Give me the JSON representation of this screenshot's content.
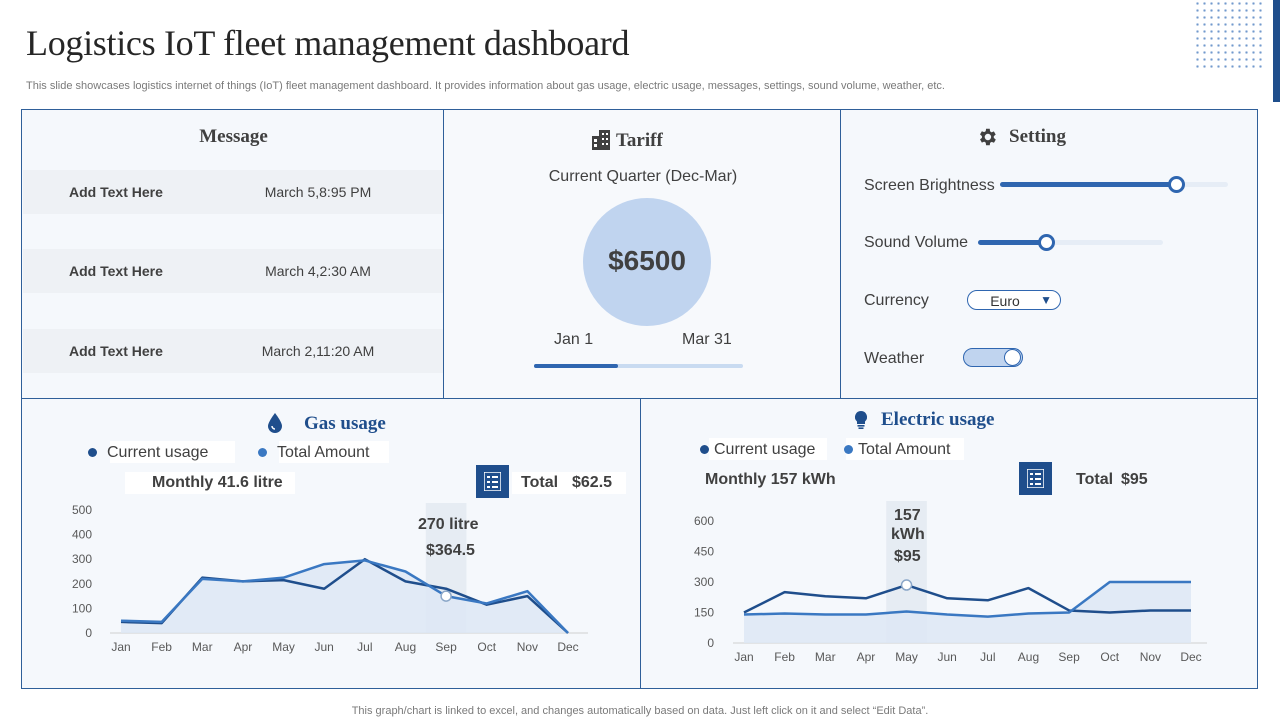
{
  "header": {
    "title": "Logistics IoT fleet management dashboard",
    "subtitle": "This slide showcases logistics internet of things (IoT) fleet management dashboard. It provides information about gas usage, electric usage, messages, settings, sound volume, weather, etc."
  },
  "message": {
    "title": "Message",
    "rows": [
      {
        "text": "Add  Text Here",
        "time": "March 5,8:95 PM"
      },
      {
        "text": "Add  Text Here",
        "time": "March 4,2:30 AM"
      },
      {
        "text": "Add  Text Here",
        "time": "March 2,11:20 AM"
      }
    ]
  },
  "tariff": {
    "title": "Tariff",
    "period": "Current Quarter (Dec-Mar)",
    "amount": "$6500",
    "start": "Jan 1",
    "end": "Mar 31",
    "progress": 0.4
  },
  "setting": {
    "title": "Setting",
    "brightness_label": "Screen Brightness",
    "brightness": 0.77,
    "volume_label": "Sound Volume",
    "volume": 0.37,
    "currency_label": "Currency",
    "currency": "Euro",
    "weather_label": "Weather",
    "weather_on": true
  },
  "gas": {
    "title": "Gas usage",
    "legend_current": "Current usage",
    "legend_total": "Total Amount",
    "monthly": "Monthly  41.6 litre",
    "total_label": "Total",
    "total_value": "$62.5",
    "callout_line1": "270 litre",
    "callout_line2": "$364.5"
  },
  "electric": {
    "title": "Electric usage",
    "legend_current": "Current usage",
    "legend_total": "Total Amount",
    "monthly": "Monthly 157 kWh",
    "total_label": "Total",
    "total_value": "$95",
    "callout_line1": "157",
    "callout_line2": "kWh",
    "callout_line3": "$95"
  },
  "colors": {
    "current": "#1f4e8c",
    "total": "#3a78c2",
    "fill": "#dde8f5"
  },
  "chart_data": [
    {
      "type": "line",
      "categories": [
        "Jan",
        "Feb",
        "Mar",
        "Apr",
        "May",
        "Jun",
        "Jul",
        "Aug",
        "Sep",
        "Oct",
        "Nov",
        "Dec"
      ],
      "ylim": [
        0,
        500
      ],
      "yticks": [
        0,
        100,
        200,
        300,
        400,
        500
      ],
      "highlight": "Sep",
      "series": [
        {
          "name": "Current usage",
          "values": [
            45,
            40,
            225,
            210,
            215,
            180,
            300,
            210,
            180,
            115,
            150,
            0
          ]
        },
        {
          "name": "Total Amount",
          "values": [
            50,
            45,
            220,
            210,
            225,
            280,
            295,
            250,
            150,
            120,
            170,
            0
          ]
        }
      ]
    },
    {
      "type": "line",
      "categories": [
        "Jan",
        "Feb",
        "Mar",
        "Apr",
        "May",
        "Jun",
        "Jul",
        "Aug",
        "Sep",
        "Oct",
        "Nov",
        "Dec"
      ],
      "ylim": [
        0,
        600
      ],
      "yticks": [
        0,
        150,
        300,
        450,
        600
      ],
      "highlight": "May",
      "series": [
        {
          "name": "Current usage",
          "values": [
            150,
            250,
            230,
            220,
            285,
            220,
            210,
            270,
            160,
            150,
            160,
            160
          ]
        },
        {
          "name": "Total Amount",
          "values": [
            140,
            145,
            140,
            140,
            155,
            140,
            130,
            145,
            150,
            300,
            300,
            300
          ]
        }
      ]
    }
  ],
  "footer": "This graph/chart is linked to excel, and changes automatically based on data. Just left click on it and select “Edit Data”."
}
